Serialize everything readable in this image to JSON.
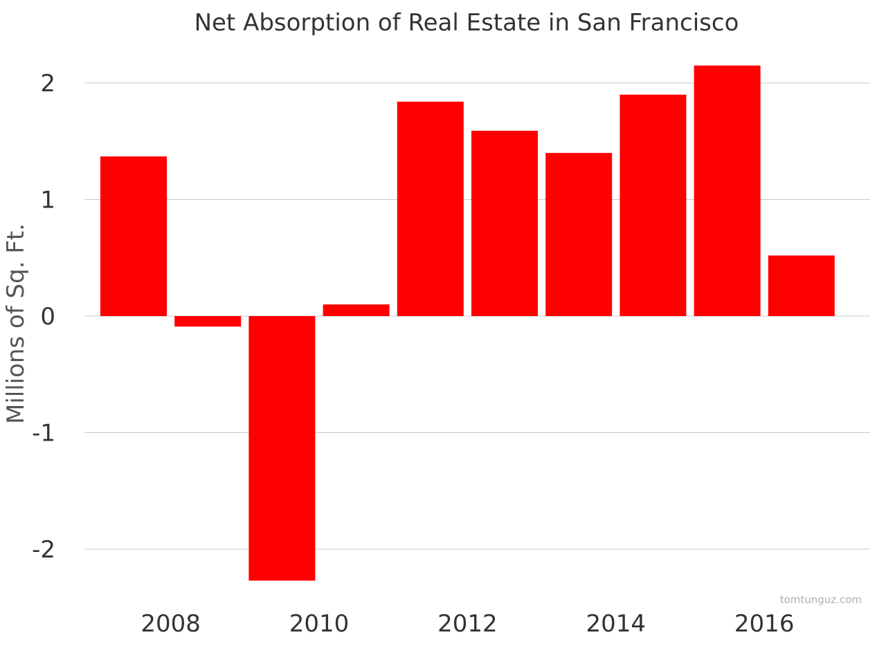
{
  "chart_data": {
    "type": "bar",
    "title": "Net Absorption of Real Estate in San Francisco",
    "xlabel": "",
    "ylabel": "Millions of Sq. Ft.",
    "x": [
      2007,
      2008,
      2009,
      2010,
      2011,
      2012,
      2013,
      2014,
      2015,
      2016
    ],
    "values": [
      1.37,
      -0.09,
      -2.27,
      0.1,
      1.84,
      1.59,
      1.4,
      1.9,
      2.15,
      0.52
    ],
    "ylim": [
      -2.3,
      2.2
    ],
    "yticks": [
      -2,
      -1,
      0,
      1,
      2
    ],
    "ytick_labels": [
      "-2",
      "-1",
      "0",
      "1",
      "2"
    ],
    "xticks": [
      2008,
      2010,
      2012,
      2014,
      2016
    ],
    "xtick_labels": [
      "2008",
      "2010",
      "2012",
      "2014",
      "2016"
    ],
    "grid": true,
    "legend": "none",
    "bar_color": "#ff0000"
  },
  "watermark": "tomtunguz.com"
}
